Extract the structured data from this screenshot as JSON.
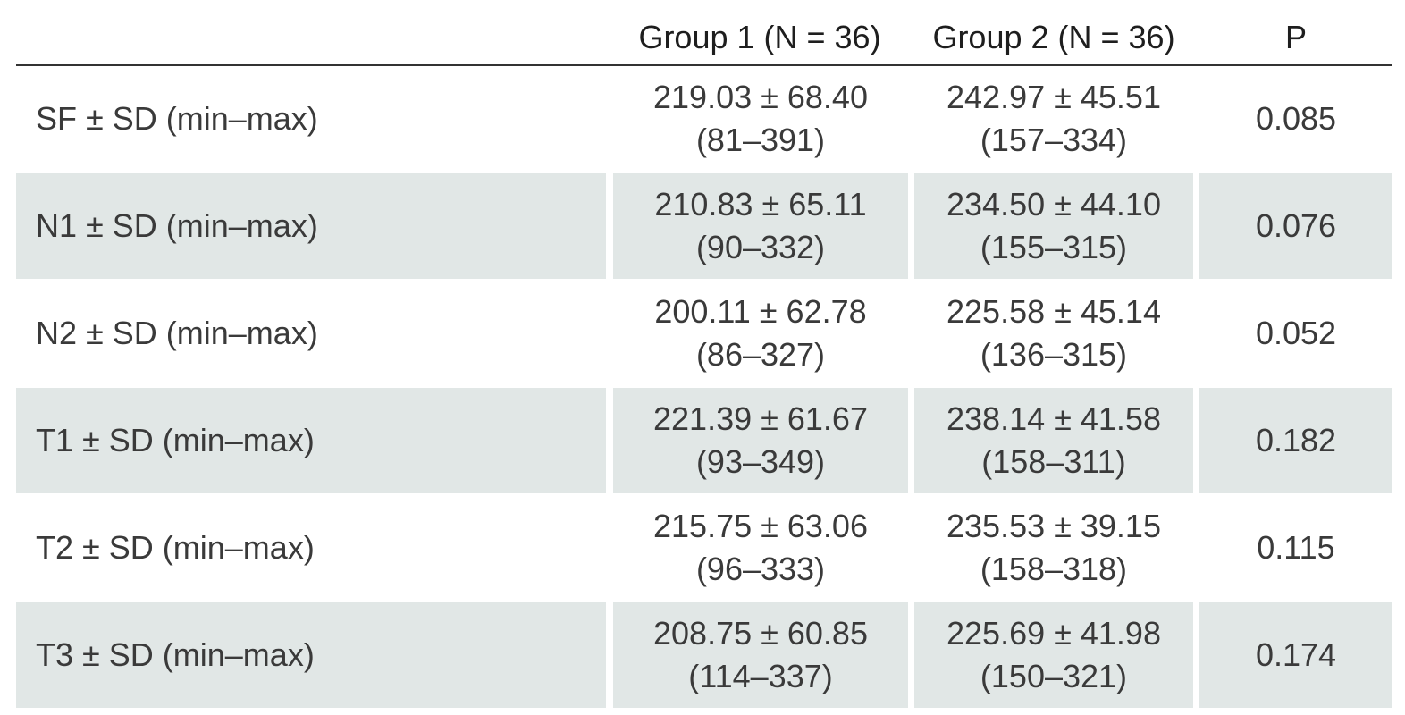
{
  "table": {
    "headers": {
      "label": "",
      "group1": "Group 1 (N = 36)",
      "group2": "Group 2 (N = 36)",
      "p": "P"
    },
    "rows": [
      {
        "label": "SF ± SD (min–max)",
        "g1_mean": "219.03 ± 68.40",
        "g1_range": "(81–391)",
        "g2_mean": "242.97 ± 45.51",
        "g2_range": "(157–334)",
        "p": "0.085"
      },
      {
        "label": "N1 ± SD (min–max)",
        "g1_mean": "210.83 ± 65.11",
        "g1_range": "(90–332)",
        "g2_mean": "234.50 ± 44.10",
        "g2_range": "(155–315)",
        "p": "0.076"
      },
      {
        "label": "N2 ± SD (min–max)",
        "g1_mean": "200.11 ± 62.78",
        "g1_range": "(86–327)",
        "g2_mean": "225.58 ± 45.14",
        "g2_range": "(136–315)",
        "p": "0.052"
      },
      {
        "label": "T1 ± SD (min–max)",
        "g1_mean": "221.39 ± 61.67",
        "g1_range": "(93–349)",
        "g2_mean": "238.14 ± 41.58",
        "g2_range": "(158–311)",
        "p": "0.182"
      },
      {
        "label": "T2 ± SD (min–max)",
        "g1_mean": "215.75 ± 63.06",
        "g1_range": "(96–333)",
        "g2_mean": "235.53 ± 39.15",
        "g2_range": "(158–318)",
        "p": "0.115"
      },
      {
        "label": "T3 ± SD (min–max)",
        "g1_mean": "208.75 ± 60.85",
        "g1_range": "(114–337)",
        "g2_mean": "225.69 ± 41.98",
        "g2_range": "(150–321)",
        "p": "0.174"
      }
    ],
    "colors": {
      "shade": "#e1e7e6",
      "rule": "#333333",
      "text": "#3a3a3a"
    }
  }
}
